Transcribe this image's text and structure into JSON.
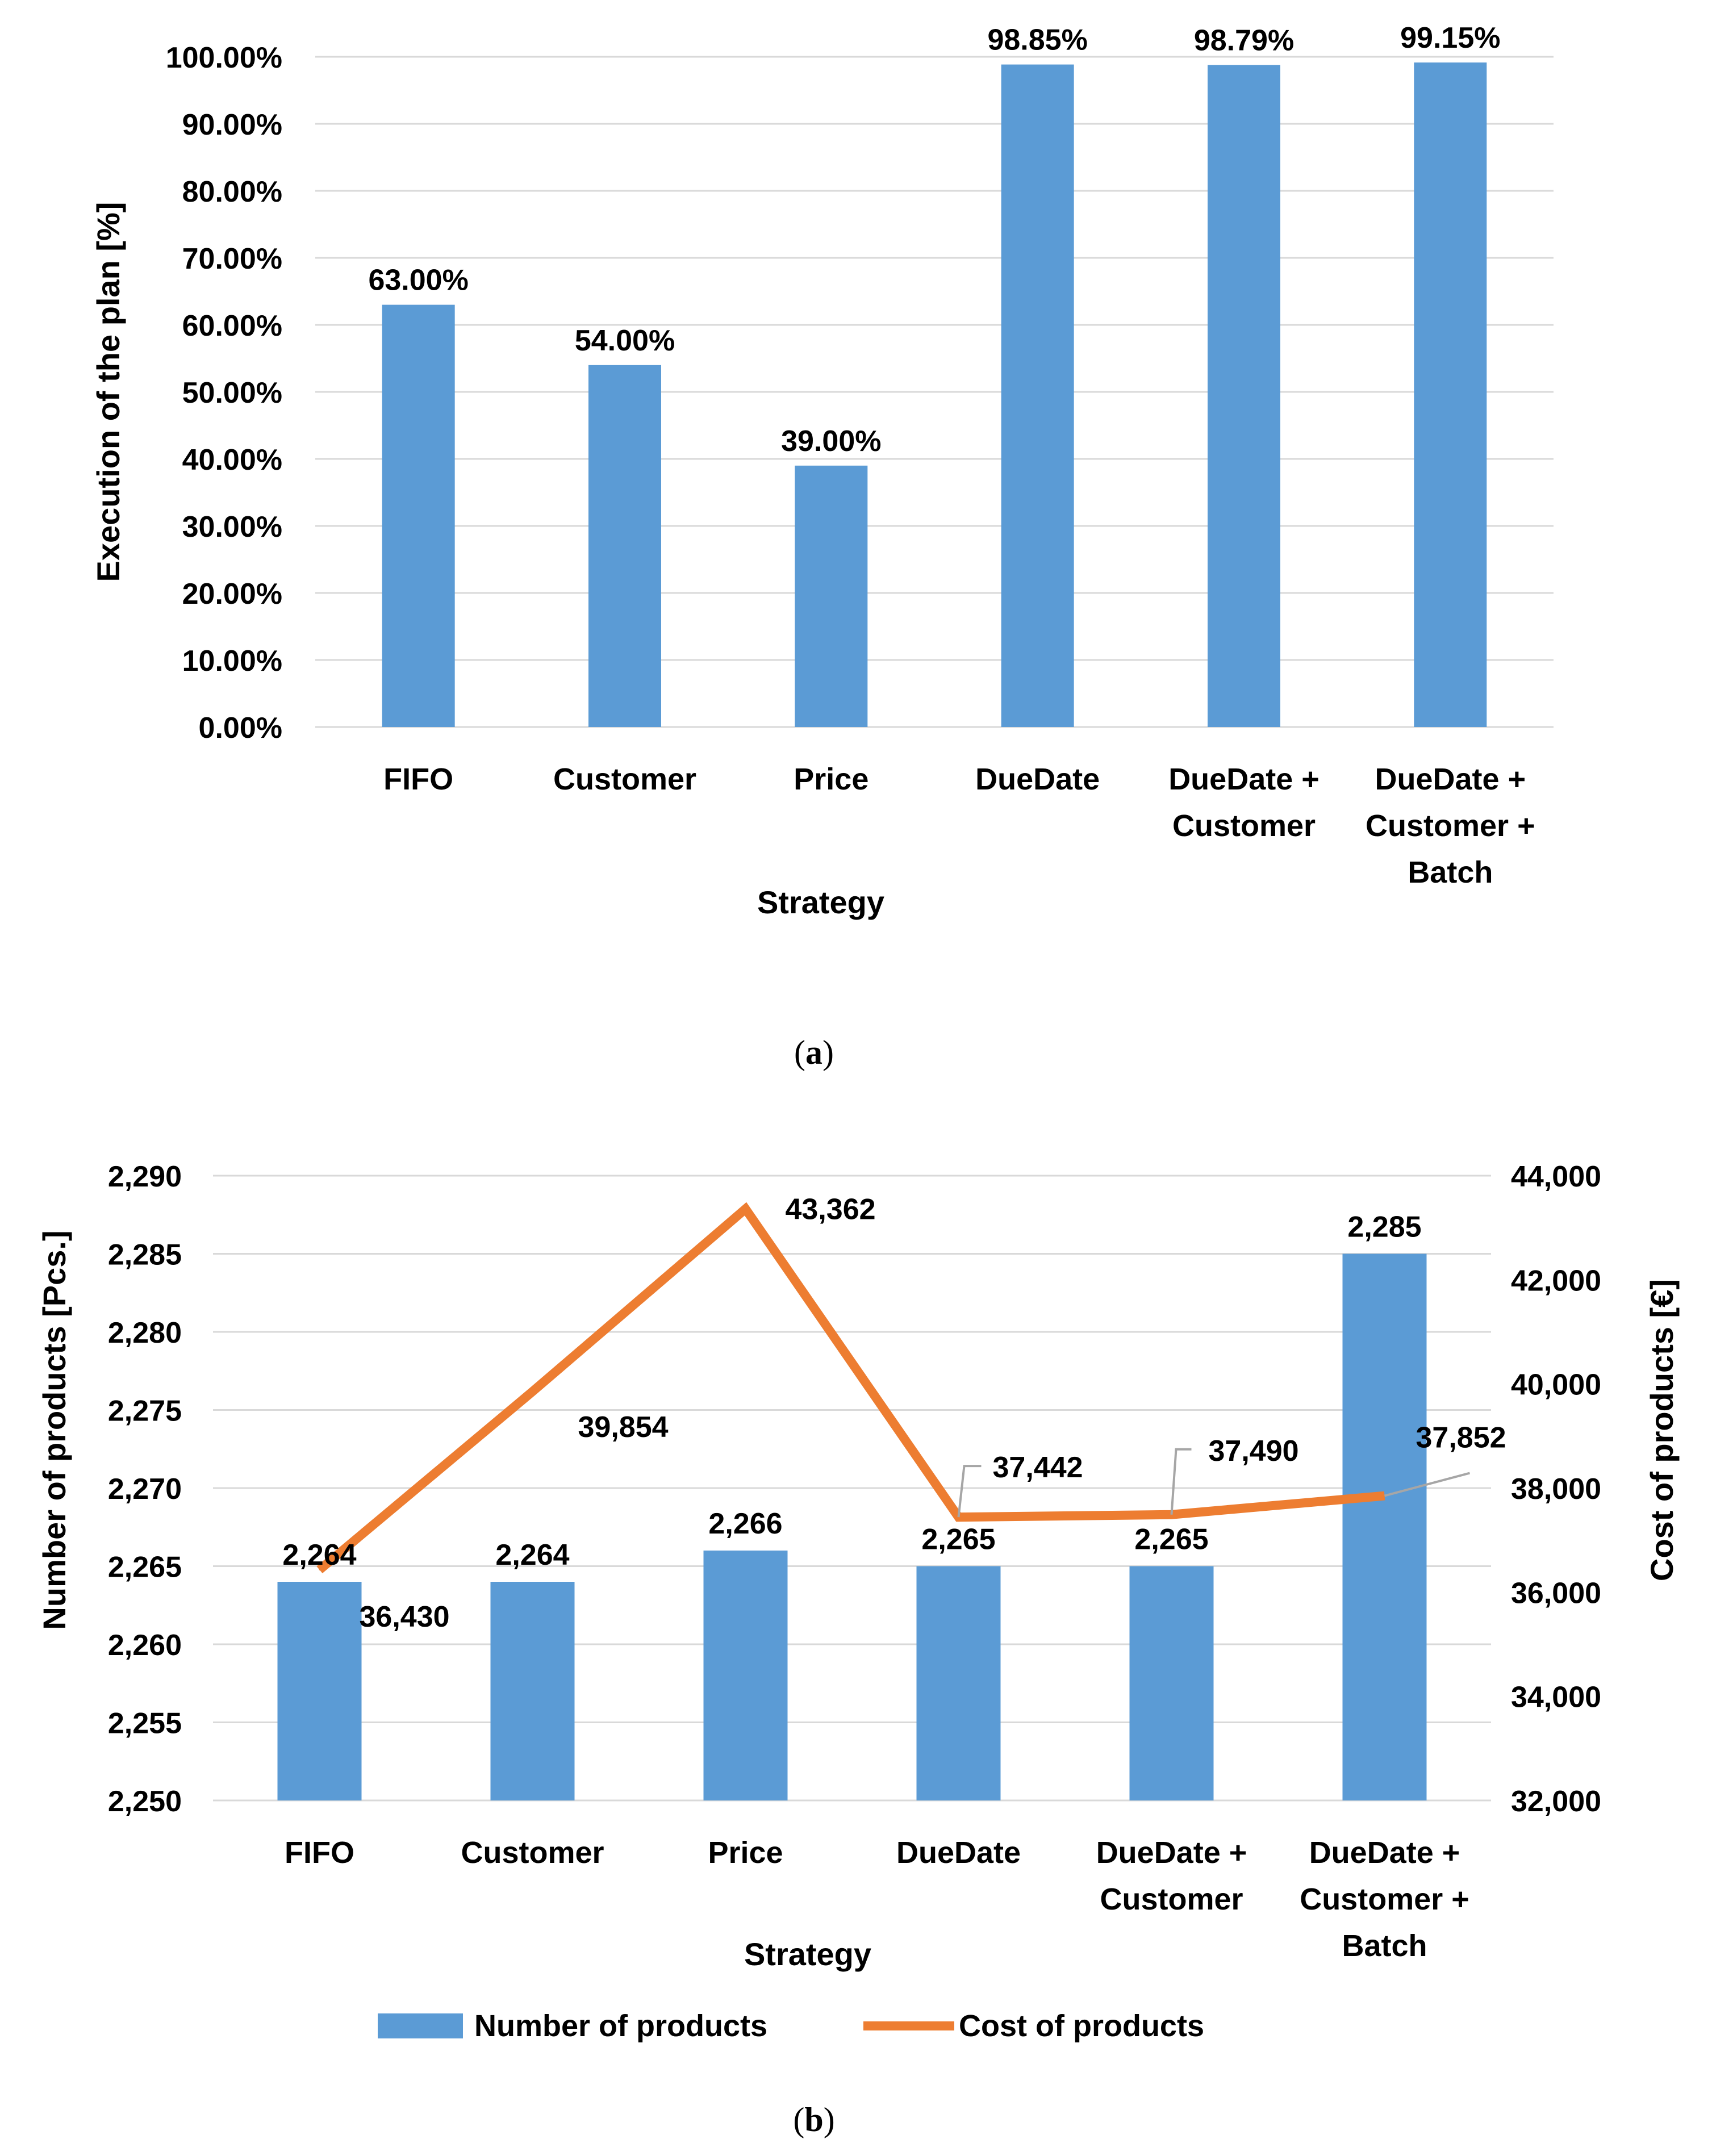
{
  "chart_data": [
    {
      "type": "bar",
      "panel_label": "a",
      "title": "",
      "categories": [
        [
          "FIFO"
        ],
        [
          "Customer"
        ],
        [
          "Price"
        ],
        [
          "DueDate"
        ],
        [
          "DueDate +",
          "Customer"
        ],
        [
          "DueDate +",
          "Customer +",
          "Batch"
        ]
      ],
      "values": [
        63.0,
        54.0,
        39.0,
        98.85,
        98.79,
        99.15
      ],
      "data_labels": [
        "63.00%",
        "54.00%",
        "39.00%",
        "98.85%",
        "98.79%",
        "99.15%"
      ],
      "xlabel": "Strategy",
      "ylabel": "Execution of the plan [%]",
      "ylim": [
        0,
        100
      ],
      "yticks": [
        "0.00%",
        "10.00%",
        "20.00%",
        "30.00%",
        "40.00%",
        "50.00%",
        "60.00%",
        "70.00%",
        "80.00%",
        "90.00%",
        "100.00%"
      ],
      "grid": true,
      "bar_color": "#5b9bd5"
    },
    {
      "type": "bar+line",
      "panel_label": "b",
      "title": "",
      "categories": [
        [
          "FIFO"
        ],
        [
          "Customer"
        ],
        [
          "Price"
        ],
        [
          "DueDate"
        ],
        [
          "DueDate +",
          "Customer"
        ],
        [
          "DueDate +",
          "Customer +",
          "Batch"
        ]
      ],
      "series": [
        {
          "name": "Number of products",
          "kind": "bar",
          "axis": "left",
          "values": [
            2264,
            2264,
            2266,
            2265,
            2265,
            2285
          ],
          "labels": [
            "2,264",
            "2,264",
            "2,266",
            "2,265",
            "2,265",
            "2,285"
          ],
          "color": "#5b9bd5"
        },
        {
          "name": "Cost of products",
          "kind": "line",
          "axis": "right",
          "values": [
            36430,
            39854,
            43362,
            37442,
            37490,
            37852
          ],
          "labels": [
            "36,430",
            "39,854",
            "43,362",
            "37,442",
            "37,490",
            "37,852"
          ],
          "color": "#ed7d31"
        }
      ],
      "xlabel": "Strategy",
      "ylabel_left": "Number of products [Pcs.]",
      "ylabel_right": "Cost of products [€]",
      "ylim_left": [
        2250,
        2290
      ],
      "ylim_right": [
        32000,
        44000
      ],
      "yticks_left": [
        "2,250",
        "2,255",
        "2,260",
        "2,265",
        "2,270",
        "2,275",
        "2,280",
        "2,285",
        "2,290"
      ],
      "yticks_right": [
        "32,000",
        "34,000",
        "36,000",
        "38,000",
        "40,000",
        "42,000",
        "44,000"
      ],
      "grid": true,
      "legend": "bottom"
    }
  ],
  "captions": [
    "a",
    "b"
  ]
}
